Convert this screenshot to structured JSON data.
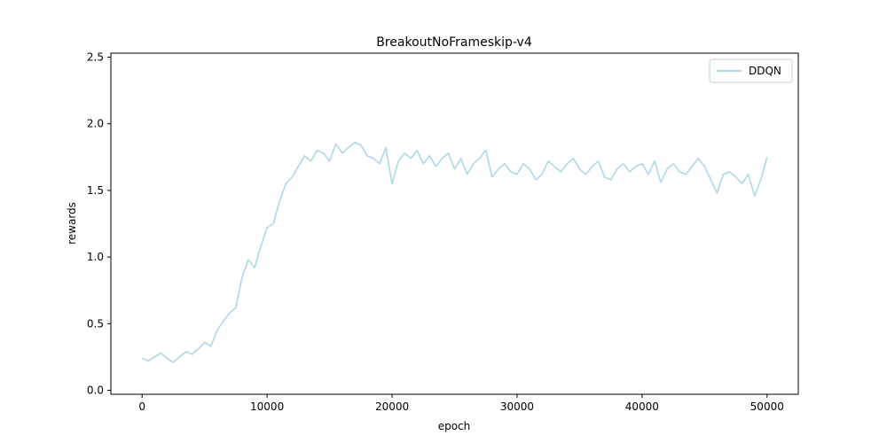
{
  "chart_data": {
    "type": "line",
    "title": "BreakoutNoFrameskip-v4",
    "xlabel": "epoch",
    "ylabel": "rewards",
    "xlim": [
      -2500,
      52500
    ],
    "ylim": [
      -0.03,
      2.53
    ],
    "xticks": [
      0,
      10000,
      20000,
      30000,
      40000,
      50000
    ],
    "yticks": [
      0.0,
      0.5,
      1.0,
      1.5,
      2.0,
      2.5
    ],
    "xtick_labels": [
      "0",
      "10000",
      "20000",
      "30000",
      "40000",
      "50000"
    ],
    "ytick_labels": [
      "0.0",
      "0.5",
      "1.0",
      "1.5",
      "2.0",
      "2.5"
    ],
    "grid": false,
    "legend_position": "top-right",
    "series": [
      {
        "name": "DDQN",
        "color": "#add8e6",
        "x": [
          0,
          500,
          1000,
          1500,
          2000,
          2500,
          3000,
          3500,
          4000,
          4500,
          5000,
          5500,
          6000,
          6500,
          7000,
          7500,
          8000,
          8500,
          9000,
          9500,
          10000,
          10500,
          11000,
          11500,
          12000,
          12500,
          13000,
          13500,
          14000,
          14500,
          15000,
          15500,
          16000,
          16500,
          17000,
          17500,
          18000,
          18500,
          19000,
          19500,
          20000,
          20500,
          21000,
          21500,
          22000,
          22500,
          23000,
          23500,
          24000,
          24500,
          25000,
          25500,
          26000,
          26500,
          27000,
          27500,
          28000,
          28500,
          29000,
          29500,
          30000,
          30500,
          31000,
          31500,
          32000,
          32500,
          33000,
          33500,
          34000,
          34500,
          35000,
          35500,
          36000,
          36500,
          37000,
          37500,
          38000,
          38500,
          39000,
          39500,
          40000,
          40500,
          41000,
          41500,
          42000,
          42500,
          43000,
          43500,
          44000,
          44500,
          45000,
          45500,
          46000,
          46500,
          47000,
          47500,
          48000,
          48500,
          49000,
          49500,
          50000
        ],
        "y": [
          0.24,
          0.22,
          0.25,
          0.28,
          0.24,
          0.21,
          0.25,
          0.29,
          0.27,
          0.31,
          0.36,
          0.33,
          0.45,
          0.52,
          0.58,
          0.62,
          0.85,
          0.98,
          0.92,
          1.08,
          1.22,
          1.25,
          1.42,
          1.55,
          1.6,
          1.68,
          1.76,
          1.72,
          1.8,
          1.78,
          1.72,
          1.85,
          1.78,
          1.82,
          1.86,
          1.84,
          1.76,
          1.74,
          1.7,
          1.82,
          1.55,
          1.72,
          1.78,
          1.74,
          1.8,
          1.7,
          1.76,
          1.68,
          1.74,
          1.78,
          1.66,
          1.74,
          1.62,
          1.7,
          1.74,
          1.8,
          1.6,
          1.66,
          1.7,
          1.64,
          1.62,
          1.7,
          1.66,
          1.58,
          1.62,
          1.72,
          1.68,
          1.64,
          1.7,
          1.74,
          1.66,
          1.62,
          1.68,
          1.72,
          1.6,
          1.58,
          1.66,
          1.7,
          1.64,
          1.68,
          1.7,
          1.62,
          1.72,
          1.56,
          1.66,
          1.7,
          1.64,
          1.62,
          1.68,
          1.74,
          1.68,
          1.58,
          1.48,
          1.62,
          1.64,
          1.6,
          1.55,
          1.62,
          1.46,
          1.58,
          1.75
        ]
      }
    ]
  }
}
